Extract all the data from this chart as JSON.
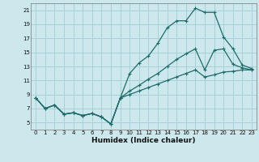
{
  "xlabel": "Humidex (Indice chaleur)",
  "bg_color": "#cce8ec",
  "grid_color": "#a8d0d8",
  "line_color": "#1e6b6b",
  "xlim": [
    -0.5,
    23.5
  ],
  "ylim": [
    4,
    22
  ],
  "xticks": [
    0,
    1,
    2,
    3,
    4,
    5,
    6,
    7,
    8,
    9,
    10,
    11,
    12,
    13,
    14,
    15,
    16,
    17,
    18,
    19,
    20,
    21,
    22,
    23
  ],
  "yticks": [
    5,
    7,
    9,
    11,
    13,
    15,
    17,
    19,
    21
  ],
  "line1_x": [
    0,
    1,
    2,
    3,
    4,
    5,
    6,
    7,
    8,
    9,
    10,
    11,
    12,
    13,
    14,
    15,
    16,
    17,
    18,
    19,
    20,
    21,
    22,
    23
  ],
  "line1_y": [
    8.5,
    7.0,
    7.5,
    6.2,
    6.4,
    6.0,
    6.3,
    5.8,
    4.8,
    8.5,
    12.0,
    13.5,
    14.5,
    16.3,
    18.5,
    19.5,
    19.5,
    21.3,
    20.7,
    20.7,
    17.2,
    15.5,
    13.2,
    12.7
  ],
  "line2_x": [
    0,
    1,
    2,
    3,
    4,
    5,
    6,
    7,
    8,
    9,
    10,
    11,
    12,
    13,
    14,
    15,
    16,
    17,
    18,
    19,
    20,
    21,
    22,
    23
  ],
  "line2_y": [
    8.5,
    7.0,
    7.5,
    6.2,
    6.4,
    6.0,
    6.3,
    5.8,
    4.8,
    8.5,
    9.5,
    10.3,
    11.2,
    12.0,
    13.0,
    14.0,
    14.8,
    15.5,
    12.5,
    15.3,
    15.5,
    13.3,
    12.8,
    12.5
  ],
  "line3_x": [
    0,
    1,
    2,
    3,
    4,
    5,
    6,
    7,
    8,
    9,
    10,
    11,
    12,
    13,
    14,
    15,
    16,
    17,
    18,
    19,
    20,
    21,
    22,
    23
  ],
  "line3_y": [
    8.5,
    7.0,
    7.5,
    6.2,
    6.4,
    6.0,
    6.3,
    5.8,
    4.8,
    8.5,
    9.0,
    9.5,
    10.0,
    10.5,
    11.0,
    11.5,
    12.0,
    12.5,
    11.5,
    11.8,
    12.2,
    12.3,
    12.5,
    12.5
  ]
}
